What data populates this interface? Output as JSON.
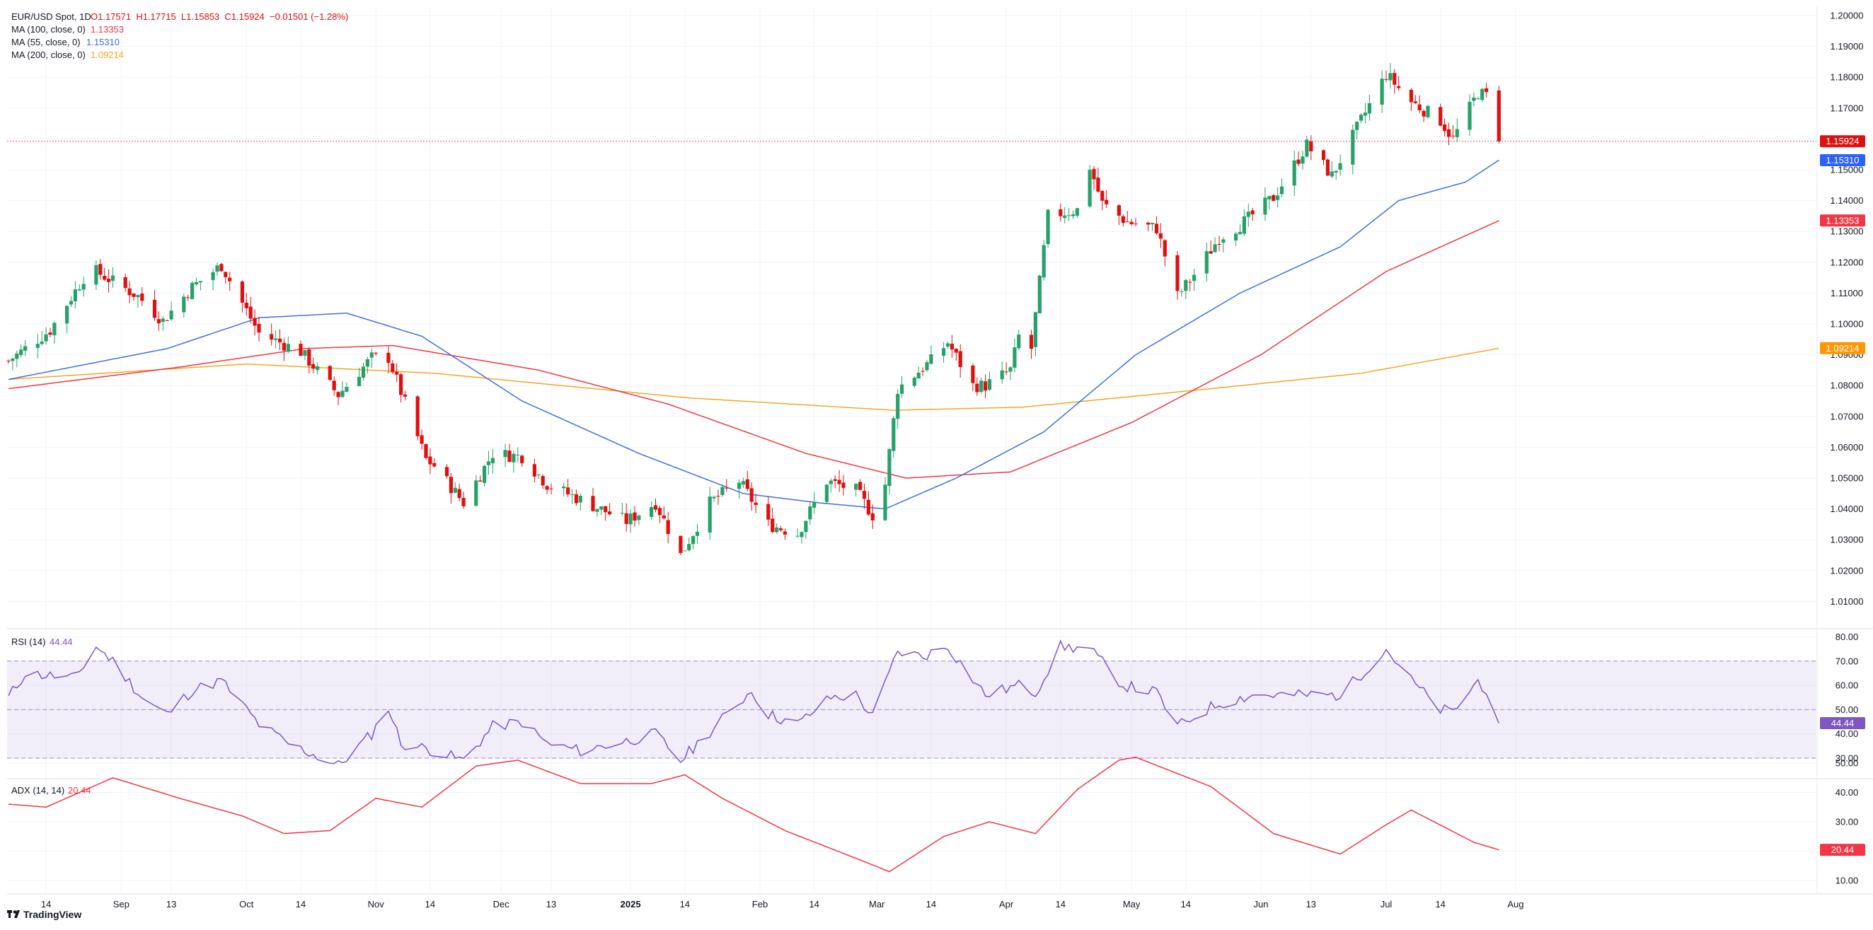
{
  "header": {
    "symbol": "EUR/USD Spot, 1D",
    "ohlc": "O1.17571  H1.17715  L1.15853  C1.15924  −0.01501 (−1.28%)",
    "ma100_label": "MA (100, close, 0)",
    "ma100_value": "1.13353",
    "ma55_label": "MA (55, close, 0)",
    "ma55_value": "1.15310",
    "ma200_label": "MA (200, close, 0)",
    "ma200_value": "1.09214"
  },
  "panes": {
    "rsi_label": "RSI (14)",
    "rsi_value": "44.44",
    "adx_label": "ADX (14, 14)",
    "adx_value": "20.44"
  },
  "price_tags": {
    "last": "1.15924",
    "ma55": "1.15310",
    "ma100": "1.13353",
    "ma200": "1.09214",
    "rsi": "44.44",
    "adx": "20.44"
  },
  "axes": {
    "price_ticks": [
      "1.20000",
      "1.19000",
      "1.18000",
      "1.17000",
      "1.16000",
      "1.15000",
      "1.14000",
      "1.13000",
      "1.12000",
      "1.11000",
      "1.10000",
      "1.09000",
      "1.08000",
      "1.07000",
      "1.06000",
      "1.05000",
      "1.04000",
      "1.03000",
      "1.02000",
      "1.01000"
    ],
    "rsi_ticks": [
      "80.00",
      "70.00",
      "60.00",
      "50.00",
      "40.00",
      "30.00"
    ],
    "adx_ticks": [
      "50.00",
      "40.00",
      "30.00",
      "20.00",
      "10.00"
    ],
    "time_ticks": [
      "14",
      "Sep",
      "13",
      "Oct",
      "14",
      "Nov",
      "14",
      "Dec",
      "13",
      "2025",
      "14",
      "Feb",
      "14",
      "Mar",
      "14",
      "Apr",
      "14",
      "May",
      "14",
      "Jun",
      "13",
      "Jul",
      "14",
      "Aug"
    ]
  },
  "branding": {
    "logo_text": "TradingView"
  },
  "colors": {
    "up": "#26a269",
    "down": "#e01010",
    "ma55": "#3d6fe0",
    "ma100": "#f23645",
    "ma200": "#f5a623",
    "rsi": "#7e57c2",
    "adx": "#f23645",
    "last_tag": "#e01010"
  },
  "chart_data": [
    {
      "type": "candlestick",
      "title": "EUR/USD Spot, 1D",
      "date_range": [
        "2024-08-05",
        "2025-07-28"
      ],
      "ylim": [
        1.005,
        1.2
      ],
      "grid": true,
      "last_close": 1.15924,
      "anchors": [
        [
          "2024-08-05",
          1.088
        ],
        [
          "2024-08-09",
          1.092
        ],
        [
          "2024-08-15",
          1.098
        ],
        [
          "2024-08-23",
          1.115
        ],
        [
          "2024-08-26",
          1.117
        ],
        [
          "2024-09-05",
          1.109
        ],
        [
          "2024-09-11",
          1.101
        ],
        [
          "2024-09-18",
          1.112
        ],
        [
          "2024-09-25",
          1.119
        ],
        [
          "2024-10-04",
          1.097
        ],
        [
          "2024-10-14",
          1.091
        ],
        [
          "2024-10-23",
          1.077
        ],
        [
          "2024-10-31",
          1.089
        ],
        [
          "2024-11-04",
          1.089
        ],
        [
          "2024-11-13",
          1.056
        ],
        [
          "2024-11-15",
          1.054
        ],
        [
          "2024-11-22",
          1.042
        ],
        [
          "2024-11-29",
          1.058
        ],
        [
          "2024-12-06",
          1.057
        ],
        [
          "2024-12-12",
          1.048
        ],
        [
          "2024-12-20",
          1.043
        ],
        [
          "2024-12-31",
          1.036
        ],
        [
          "2025-01-07",
          1.042
        ],
        [
          "2025-01-13",
          1.025
        ],
        [
          "2025-01-20",
          1.042
        ],
        [
          "2025-01-27",
          1.049
        ],
        [
          "2025-02-03",
          1.035
        ],
        [
          "2025-02-10",
          1.032
        ],
        [
          "2025-02-17",
          1.049
        ],
        [
          "2025-02-24",
          1.046
        ],
        [
          "2025-02-28",
          1.038
        ],
        [
          "2025-03-03",
          1.048
        ],
        [
          "2025-03-06",
          1.079
        ],
        [
          "2025-03-14",
          1.088
        ],
        [
          "2025-03-18",
          1.094
        ],
        [
          "2025-03-24",
          1.08
        ],
        [
          "2025-03-27",
          1.08
        ],
        [
          "2025-04-02",
          1.085
        ],
        [
          "2025-04-04",
          1.096
        ],
        [
          "2025-04-07",
          1.092
        ],
        [
          "2025-04-11",
          1.135
        ],
        [
          "2025-04-18",
          1.137
        ],
        [
          "2025-04-21",
          1.151
        ],
        [
          "2025-04-24",
          1.139
        ],
        [
          "2025-04-30",
          1.133
        ],
        [
          "2025-05-07",
          1.131
        ],
        [
          "2025-05-12",
          1.109
        ],
        [
          "2025-05-16",
          1.116
        ],
        [
          "2025-05-22",
          1.128
        ],
        [
          "2025-05-27",
          1.132
        ],
        [
          "2025-06-04",
          1.141
        ],
        [
          "2025-06-12",
          1.158
        ],
        [
          "2025-06-18",
          1.148
        ],
        [
          "2025-06-25",
          1.166
        ],
        [
          "2025-07-01",
          1.181
        ],
        [
          "2025-07-07",
          1.172
        ],
        [
          "2025-07-14",
          1.166
        ],
        [
          "2025-07-17",
          1.16
        ],
        [
          "2025-07-23",
          1.175
        ],
        [
          "2025-07-25",
          1.174
        ],
        [
          "2025-07-28",
          1.159
        ]
      ]
    },
    {
      "type": "line",
      "name": "MA (55, close, 0)",
      "anchors": [
        [
          "2024-08-05",
          1.082
        ],
        [
          "2024-09-12",
          1.092
        ],
        [
          "2024-10-04",
          1.102
        ],
        [
          "2024-10-25",
          1.1035
        ],
        [
          "2024-11-12",
          1.096
        ],
        [
          "2024-12-06",
          1.075
        ],
        [
          "2025-01-03",
          1.058
        ],
        [
          "2025-01-28",
          1.045
        ],
        [
          "2025-02-15",
          1.042
        ],
        [
          "2025-03-03",
          1.04
        ],
        [
          "2025-03-20",
          1.05
        ],
        [
          "2025-04-10",
          1.065
        ],
        [
          "2025-05-02",
          1.09
        ],
        [
          "2025-05-27",
          1.11
        ],
        [
          "2025-06-20",
          1.125
        ],
        [
          "2025-07-04",
          1.14
        ],
        [
          "2025-07-20",
          1.146
        ],
        [
          "2025-07-28",
          1.1531
        ]
      ]
    },
    {
      "type": "line",
      "name": "MA (100, close, 0)",
      "anchors": [
        [
          "2024-08-05",
          1.079
        ],
        [
          "2024-09-15",
          1.086
        ],
        [
          "2024-10-15",
          1.092
        ],
        [
          "2024-11-05",
          1.093
        ],
        [
          "2024-12-10",
          1.085
        ],
        [
          "2025-01-10",
          1.074
        ],
        [
          "2025-02-12",
          1.058
        ],
        [
          "2025-03-08",
          1.05
        ],
        [
          "2025-04-02",
          1.052
        ],
        [
          "2025-05-01",
          1.068
        ],
        [
          "2025-06-01",
          1.09
        ],
        [
          "2025-07-01",
          1.117
        ],
        [
          "2025-07-28",
          1.1335
        ]
      ]
    },
    {
      "type": "line",
      "name": "MA (200, close, 0)",
      "anchors": [
        [
          "2024-08-05",
          1.082
        ],
        [
          "2024-10-01",
          1.087
        ],
        [
          "2024-11-15",
          1.084
        ],
        [
          "2025-01-15",
          1.076
        ],
        [
          "2025-03-05",
          1.072
        ],
        [
          "2025-04-05",
          1.073
        ],
        [
          "2025-05-20",
          1.079
        ],
        [
          "2025-06-25",
          1.084
        ],
        [
          "2025-07-28",
          1.0921
        ]
      ]
    },
    {
      "type": "line",
      "name": "RSI (14)",
      "ylim": [
        25,
        82
      ],
      "bands": [
        30,
        50,
        70
      ],
      "anchors": [
        [
          "2024-08-05",
          55
        ],
        [
          "2024-08-09",
          65
        ],
        [
          "2024-08-21",
          63
        ],
        [
          "2024-08-26",
          76
        ],
        [
          "2024-08-30",
          70
        ],
        [
          "2024-09-06",
          55
        ],
        [
          "2024-09-12",
          48
        ],
        [
          "2024-09-18",
          58
        ],
        [
          "2024-09-25",
          62
        ],
        [
          "2024-10-04",
          44
        ],
        [
          "2024-10-11",
          36
        ],
        [
          "2024-10-23",
          27
        ],
        [
          "2024-10-31",
          40
        ],
        [
          "2024-11-04",
          51
        ],
        [
          "2024-11-07",
          36
        ],
        [
          "2024-11-13",
          34
        ],
        [
          "2024-11-22",
          29
        ],
        [
          "2024-11-29",
          43
        ],
        [
          "2024-12-06",
          45
        ],
        [
          "2024-12-12",
          36
        ],
        [
          "2024-12-20",
          33
        ],
        [
          "2024-12-31",
          37
        ],
        [
          "2025-01-07",
          40
        ],
        [
          "2025-01-13",
          29
        ],
        [
          "2025-01-20",
          41
        ],
        [
          "2025-01-30",
          58
        ],
        [
          "2025-02-03",
          48
        ],
        [
          "2025-02-10",
          44
        ],
        [
          "2025-02-18",
          55
        ],
        [
          "2025-02-24",
          56
        ],
        [
          "2025-02-28",
          47
        ],
        [
          "2025-03-06",
          74
        ],
        [
          "2025-03-12",
          72
        ],
        [
          "2025-03-18",
          76
        ],
        [
          "2025-03-27",
          56
        ],
        [
          "2025-04-04",
          60
        ],
        [
          "2025-04-08",
          57
        ],
        [
          "2025-04-14",
          76
        ],
        [
          "2025-04-21",
          75
        ],
        [
          "2025-04-29",
          60
        ],
        [
          "2025-05-07",
          57
        ],
        [
          "2025-05-12",
          43
        ],
        [
          "2025-05-21",
          52
        ],
        [
          "2025-05-30",
          56
        ],
        [
          "2025-06-10",
          56
        ],
        [
          "2025-06-20",
          56
        ],
        [
          "2025-07-01",
          75
        ],
        [
          "2025-07-07",
          62
        ],
        [
          "2025-07-14",
          50
        ],
        [
          "2025-07-17",
          49
        ],
        [
          "2025-07-23",
          62
        ],
        [
          "2025-07-25",
          58
        ],
        [
          "2025-07-28",
          44.44
        ]
      ]
    },
    {
      "type": "line",
      "name": "ADX (14, 14)",
      "ylim": [
        8,
        54
      ],
      "anchors": [
        [
          "2024-08-05",
          36
        ],
        [
          "2024-08-14",
          35
        ],
        [
          "2024-08-30",
          45
        ],
        [
          "2024-09-15",
          38
        ],
        [
          "2024-09-30",
          32
        ],
        [
          "2024-10-10",
          26
        ],
        [
          "2024-10-21",
          27
        ],
        [
          "2024-11-01",
          38
        ],
        [
          "2024-11-12",
          35
        ],
        [
          "2024-11-25",
          49
        ],
        [
          "2024-12-05",
          51
        ],
        [
          "2024-12-20",
          43
        ],
        [
          "2025-01-06",
          43
        ],
        [
          "2025-01-14",
          46
        ],
        [
          "2025-01-23",
          38
        ],
        [
          "2025-02-07",
          27
        ],
        [
          "2025-02-25",
          17
        ],
        [
          "2025-03-04",
          13
        ],
        [
          "2025-03-17",
          25
        ],
        [
          "2025-03-28",
          30
        ],
        [
          "2025-04-08",
          26
        ],
        [
          "2025-04-18",
          41
        ],
        [
          "2025-04-28",
          51
        ],
        [
          "2025-05-02",
          52
        ],
        [
          "2025-05-20",
          42
        ],
        [
          "2025-06-04",
          26
        ],
        [
          "2025-06-20",
          19
        ],
        [
          "2025-07-01",
          29
        ],
        [
          "2025-07-07",
          34
        ],
        [
          "2025-07-22",
          23
        ],
        [
          "2025-07-28",
          20.44
        ]
      ]
    }
  ]
}
